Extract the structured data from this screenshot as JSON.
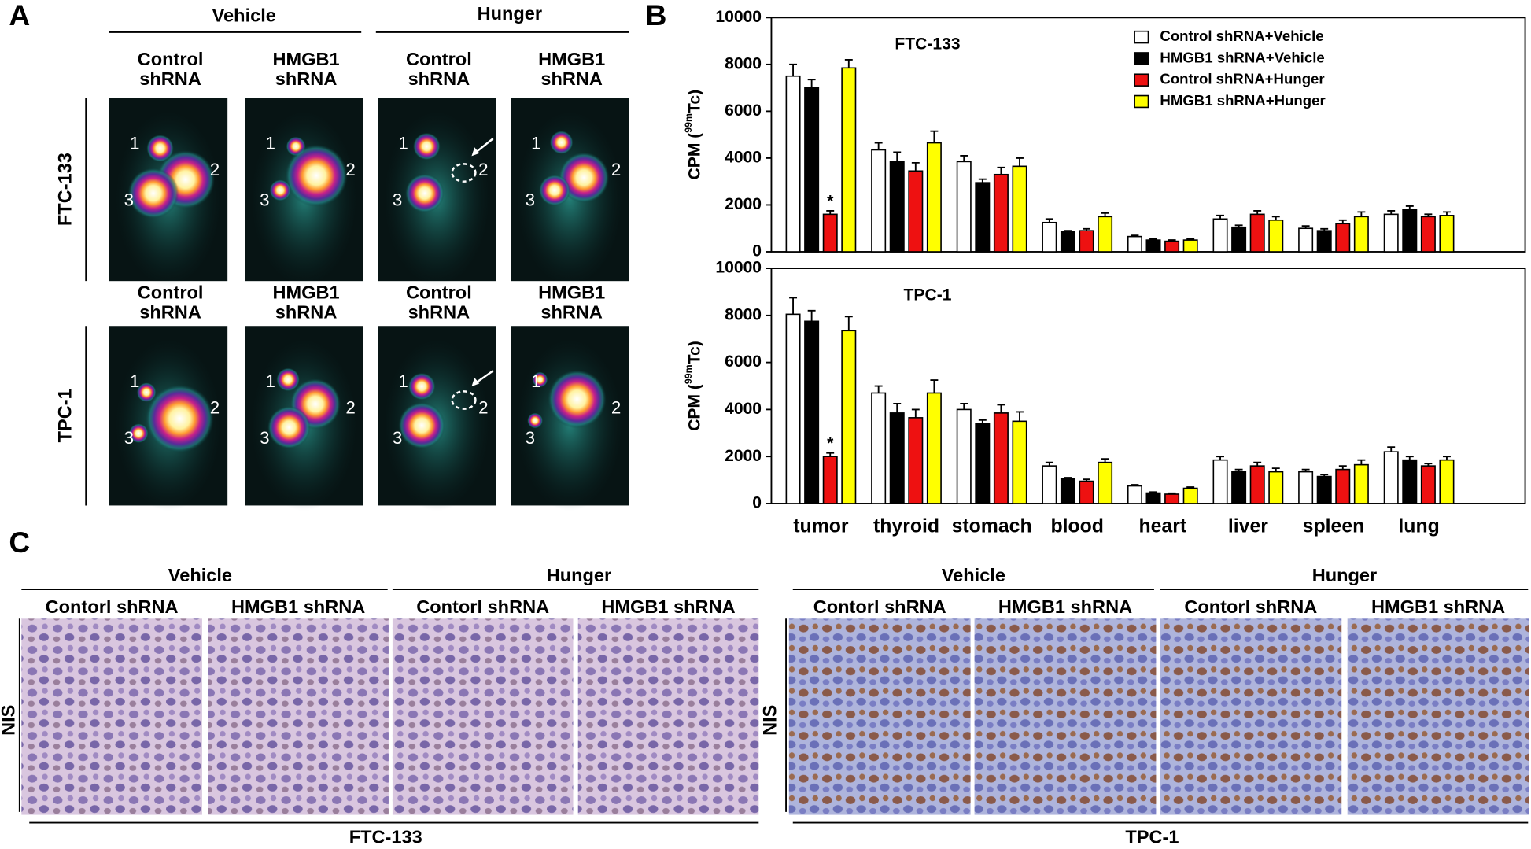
{
  "panel_a": {
    "letter": "A",
    "groups": [
      "Vehicle",
      "Hunger"
    ],
    "columns": [
      [
        "Control",
        "shRNA"
      ],
      [
        "HMGB1",
        "shRNA"
      ]
    ],
    "rows": [
      "FTC-133",
      "TPC-1"
    ],
    "markers": [
      "1",
      "2",
      "3"
    ]
  },
  "panel_b": {
    "letter": "B"
  },
  "chart_data": [
    {
      "type": "bar",
      "title": "FTC-133",
      "ylabel": [
        "CPM (",
        "99m",
        "Tc)"
      ],
      "ylim": [
        0,
        10000
      ],
      "yticks": [
        0,
        2000,
        4000,
        6000,
        8000,
        10000
      ],
      "legend": "top-right",
      "annotation": "*",
      "series": [
        {
          "name": "Control shRNA+Vehicle",
          "color": "#ffffff",
          "values": [
            7500,
            4350,
            3850,
            1250,
            650,
            1400,
            1000,
            1600
          ],
          "errors": [
            500,
            300,
            250,
            150,
            50,
            150,
            100,
            150
          ]
        },
        {
          "name": "HMGB1 shRNA+Vehicle",
          "color": "#000000",
          "values": [
            7000,
            3850,
            2950,
            850,
            500,
            1050,
            900,
            1800
          ],
          "errors": [
            350,
            400,
            150,
            50,
            50,
            80,
            80,
            150
          ]
        },
        {
          "name": "Control shRNA+Hunger",
          "color": "#ee1111",
          "values": [
            1600,
            3450,
            3300,
            900,
            450,
            1600,
            1200,
            1500
          ],
          "errors": [
            150,
            350,
            300,
            80,
            50,
            150,
            150,
            100
          ]
        },
        {
          "name": "HMGB1 shRNA+Hunger",
          "color": "#ffff00",
          "values": [
            7850,
            4650,
            3650,
            1500,
            500,
            1350,
            1500,
            1550
          ],
          "errors": [
            350,
            500,
            350,
            150,
            50,
            150,
            200,
            150
          ]
        }
      ]
    },
    {
      "type": "bar",
      "title": "TPC-1",
      "ylabel": [
        "CPM (",
        "99m",
        "Tc)"
      ],
      "ylim": [
        0,
        10000
      ],
      "yticks": [
        0,
        2000,
        4000,
        6000,
        8000,
        10000
      ],
      "annotation": "*",
      "categories": [
        "tumor",
        "thyroid",
        "stomach",
        "blood",
        "heart",
        "liver",
        "spleen",
        "lung"
      ],
      "series": [
        {
          "color": "#ffffff",
          "values": [
            8050,
            4700,
            4000,
            1600,
            750,
            1850,
            1350,
            2200
          ],
          "errors": [
            700,
            300,
            250,
            150,
            50,
            150,
            100,
            200
          ]
        },
        {
          "color": "#000000",
          "values": [
            7750,
            3850,
            3400,
            1050,
            450,
            1350,
            1150,
            1850
          ],
          "errors": [
            450,
            400,
            150,
            50,
            40,
            100,
            80,
            150
          ]
        },
        {
          "color": "#ee1111",
          "values": [
            2000,
            3650,
            3850,
            950,
            400,
            1600,
            1450,
            1600
          ],
          "errors": [
            150,
            350,
            350,
            80,
            40,
            150,
            150,
            100
          ]
        },
        {
          "color": "#ffff00",
          "values": [
            7350,
            4700,
            3500,
            1750,
            650,
            1350,
            1650,
            1850
          ],
          "errors": [
            600,
            550,
            400,
            150,
            50,
            150,
            200,
            150
          ]
        }
      ]
    }
  ],
  "panel_c": {
    "letter": "C",
    "groups": [
      "Vehicle",
      "Hunger"
    ],
    "columns": [
      "Contorl shRNA",
      "HMGB1 shRNA"
    ],
    "row": "NIS",
    "cell_lines": [
      "FTC-133",
      "TPC-1"
    ]
  }
}
